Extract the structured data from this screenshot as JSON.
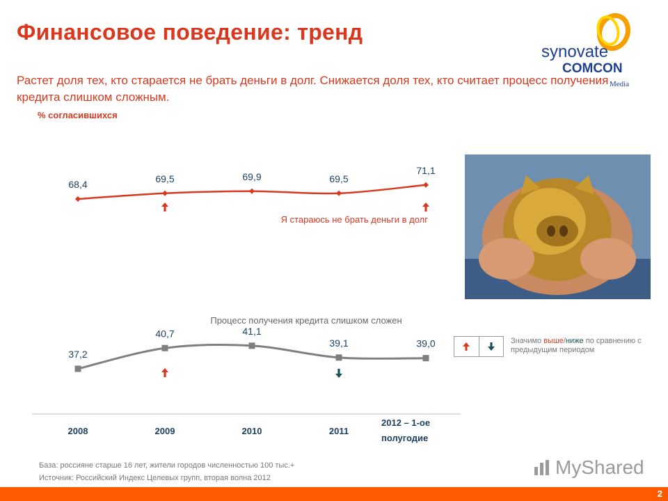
{
  "header": {
    "title": "Финансовое поведение: тренд",
    "subtitle": "Растет доля тех, кто старается не брать деньги в долг. Снижается доля тех, кто считает процесс получения кредита слишком сложным.",
    "unit": "% согласившихся"
  },
  "logo": {
    "line1": "synovate",
    "line2": "COMCON",
    "line3": "Media"
  },
  "photo": {
    "subject": "piggy-bank-in-hands"
  },
  "legend": {
    "text_prefix": "Значимо ",
    "higher": "выше",
    "slash": "/",
    "lower": "ниже",
    "text_suffix": " по сравнению с предыдущим периодом"
  },
  "footnote": {
    "base": "База: россияне старше 16 лет, жители городов численностью 100 тыс.+",
    "source": "Источник: Российский Индекс Целевых групп, вторая волна 2012"
  },
  "watermark": "MyShared",
  "page_number": "2",
  "colors": {
    "accent": "#d9381e",
    "series_grey": "#7f7f7f",
    "arrow_up": "#d9381e",
    "arrow_down": "#1a4f55",
    "footer": "#ff5a00"
  },
  "chart_data": {
    "type": "line",
    "categories": [
      "2008",
      "2009",
      "2010",
      "2011",
      "2012 – 1-ое полугодие"
    ],
    "series": [
      {
        "name": "Я стараюсь не брать деньги в долг",
        "values": [
          68.4,
          69.5,
          69.9,
          69.5,
          71.1
        ],
        "labels": [
          "68,4",
          "69,5",
          "69,9",
          "69,5",
          "71,1"
        ],
        "significance": [
          null,
          "up",
          null,
          null,
          "up"
        ],
        "color": "#d9381e",
        "marker": "diamond"
      },
      {
        "name": "Процесс получения кредита слишком сложен",
        "values": [
          37.2,
          40.7,
          41.1,
          39.1,
          39.0
        ],
        "labels": [
          "37,2",
          "40,7",
          "41,1",
          "39,1",
          "39,0"
        ],
        "significance": [
          null,
          "up",
          null,
          "down",
          null
        ],
        "color": "#7f7f7f",
        "marker": "square"
      }
    ]
  }
}
